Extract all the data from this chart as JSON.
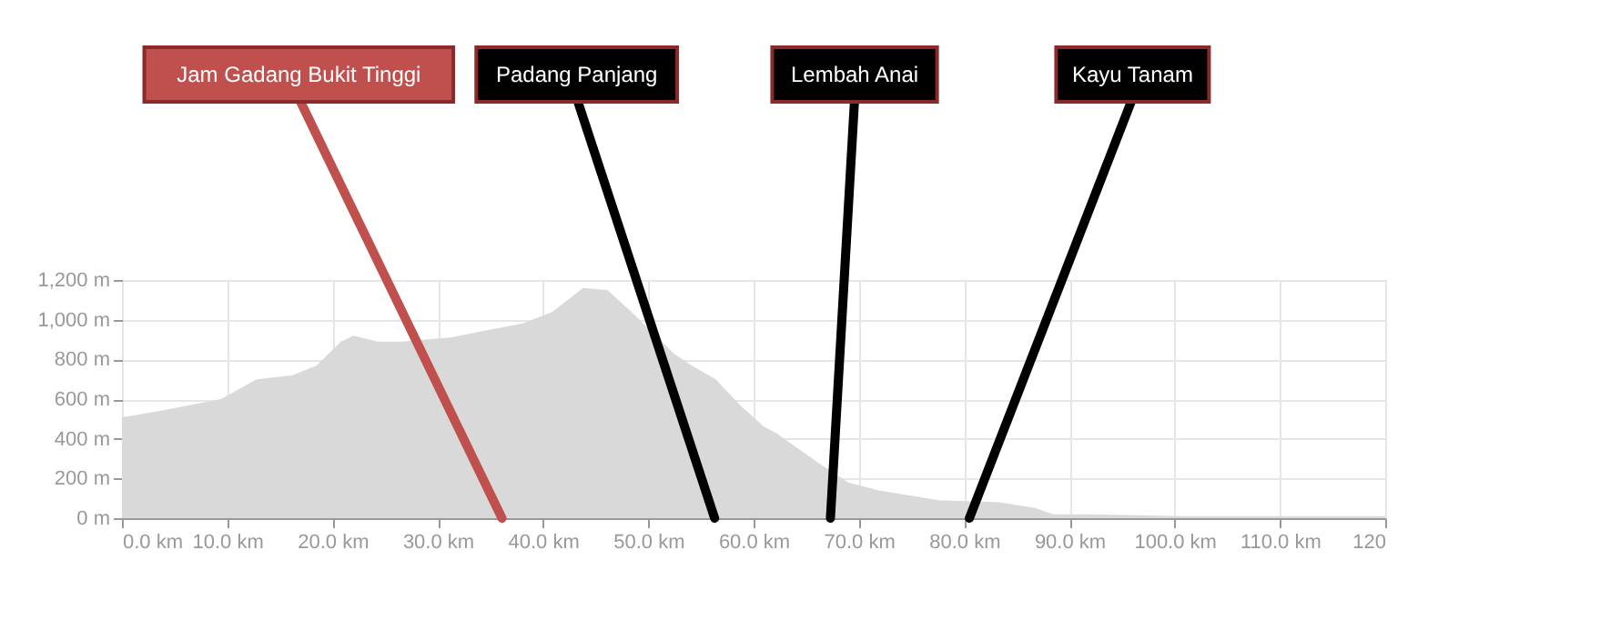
{
  "chart_data": {
    "type": "area",
    "x": [
      0,
      0.2,
      3.6,
      9.4,
      12.8,
      16.2,
      18.5,
      20.8,
      22,
      24.3,
      26.6,
      31.2,
      34,
      38,
      40.9,
      43.8,
      46.1,
      48.4,
      52.4,
      54.1,
      56.4,
      58.7,
      61,
      62.1,
      66.1,
      69,
      71.9,
      77.6,
      83.4,
      86.8,
      88.5,
      92,
      100.5,
      120
    ],
    "series": [
      {
        "color": "#d9d9d9",
        "values": [
          510,
          510,
          540,
          600,
          700,
          720,
          770,
          890,
          920,
          890,
          890,
          910,
          940,
          980,
          1040,
          1160,
          1150,
          1040,
          830,
          770,
          700,
          570,
          460,
          430,
          280,
          180,
          140,
          90,
          80,
          50,
          20,
          20,
          10,
          10
        ]
      }
    ],
    "xlim": [
      0,
      120
    ],
    "xticks": [
      {
        "value": 0,
        "label": "0.0 km"
      },
      {
        "value": 10,
        "label": "10.0 km"
      },
      {
        "value": 20,
        "label": "20.0 km"
      },
      {
        "value": 30,
        "label": "30.0 km"
      },
      {
        "value": 40,
        "label": "40.0 km"
      },
      {
        "value": 50,
        "label": "50.0 km"
      },
      {
        "value": 60,
        "label": "60.0 km"
      },
      {
        "value": 70,
        "label": "70.0 km"
      },
      {
        "value": 80,
        "label": "80.0 km"
      },
      {
        "value": 90,
        "label": "90.0 km"
      },
      {
        "value": 100,
        "label": "100.0 km"
      },
      {
        "value": 110,
        "label": "110.0 km"
      },
      {
        "value": 120,
        "label": "120"
      }
    ],
    "ylim": [
      0,
      1200
    ],
    "yticks": [
      {
        "value": 0,
        "label": "0 m"
      },
      {
        "value": 200,
        "label": "200 m"
      },
      {
        "value": 400,
        "label": "400 m"
      },
      {
        "value": 600,
        "label": "600 m"
      },
      {
        "value": 800,
        "label": "800 m"
      },
      {
        "value": 1000,
        "label": "1,000 m"
      },
      {
        "value": 1200,
        "label": "1,200 m"
      }
    ],
    "grid": true,
    "annotations": [
      {
        "text": "Jam Gadang Bukit Tinggi",
        "x": 36.1,
        "y": 0
      },
      {
        "text": "Padang Panjang",
        "x": 56.3,
        "y": 0
      },
      {
        "text": "Lembah Anai",
        "x": 67.3,
        "y": 0
      },
      {
        "text": "Kayu Tanam",
        "x": 80.5,
        "y": 0
      }
    ]
  }
}
